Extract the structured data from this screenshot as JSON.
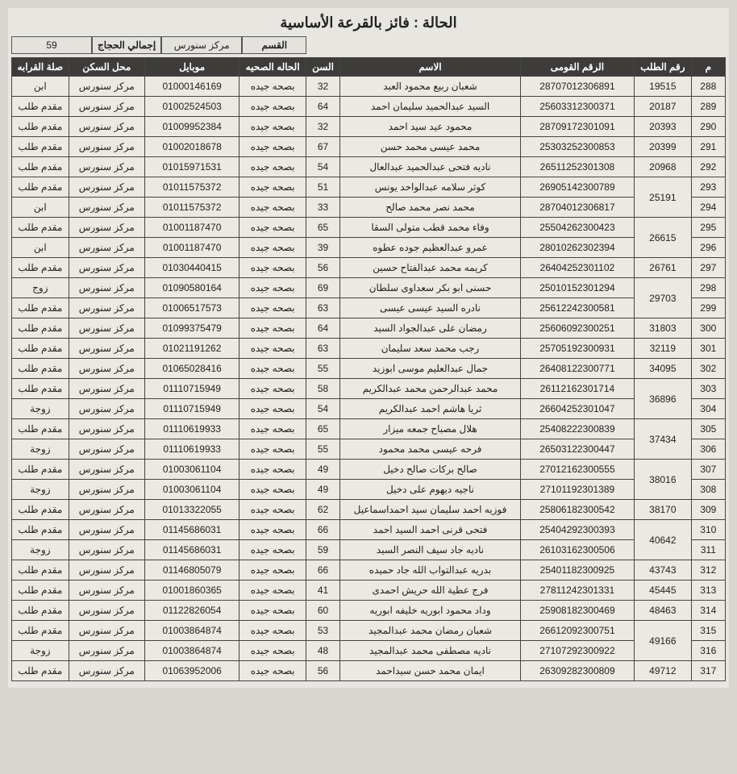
{
  "title": "الحالة : فائز بالقرعة الأساسية",
  "summary": {
    "section_label": "القسم",
    "section_value": "مركز سنورس",
    "total_label": "إجمالي الحجاج",
    "total_value": "59"
  },
  "columns": {
    "m": "م",
    "req": "رقم الطلب",
    "nid": "الرقم القومى",
    "name": "الاسم",
    "age": "السن",
    "health": "الحاله الصحيه",
    "mobile": "موبايل",
    "loc": "محل السكن",
    "rel": "صلة القرابه"
  },
  "defaults": {
    "health": "بصحه جيده",
    "loc": "مركز سنورس"
  },
  "rows": [
    {
      "m": "288",
      "req": "19515",
      "nid": "28707012306891",
      "name": "شعبان ربيع محمود العبد",
      "age": "32",
      "mobile": "01000146169",
      "rel": "ابن"
    },
    {
      "m": "289",
      "req": "20187",
      "nid": "25603312300371",
      "name": "السيد عبدالحميد سليمان احمد",
      "age": "64",
      "mobile": "01002524503",
      "rel": "مقدم طلب"
    },
    {
      "m": "290",
      "req": "20393",
      "nid": "28709172301091",
      "name": "محمود عيد سيد احمد",
      "age": "32",
      "mobile": "01009952384",
      "rel": "مقدم طلب"
    },
    {
      "m": "291",
      "req": "20399",
      "nid": "25303252300853",
      "name": "محمد عيسى محمد حسن",
      "age": "67",
      "mobile": "01002018678",
      "rel": "مقدم طلب"
    },
    {
      "m": "292",
      "req": "20968",
      "nid": "26511252301308",
      "name": "ناديه فتحى عبدالحميد عبدالعال",
      "age": "54",
      "mobile": "01015971531",
      "rel": "مقدم طلب"
    },
    {
      "m": "293",
      "req": "25191",
      "req_rowspan": 2,
      "nid": "26905142300789",
      "name": "كوثر سلامه عبدالواحد يونس",
      "age": "51",
      "mobile": "01011575372",
      "rel": "مقدم طلب"
    },
    {
      "m": "294",
      "nid": "28704012306817",
      "name": "محمد نصر محمد صالح",
      "age": "33",
      "mobile": "01011575372",
      "rel": "ابن"
    },
    {
      "m": "295",
      "req": "26615",
      "req_rowspan": 2,
      "nid": "25504262300423",
      "name": "وفاء محمد قطب متولى السقا",
      "age": "65",
      "mobile": "01001187470",
      "rel": "مقدم طلب"
    },
    {
      "m": "296",
      "nid": "28010262302394",
      "name": "عمرو عبدالعظيم جوده عطوه",
      "age": "39",
      "mobile": "01001187470",
      "rel": "ابن"
    },
    {
      "m": "297",
      "req": "26761",
      "nid": "26404252301102",
      "name": "كريمه محمد عبدالفتاح حسين",
      "age": "56",
      "mobile": "01030440415",
      "rel": "مقدم طلب"
    },
    {
      "m": "298",
      "req": "29703",
      "req_rowspan": 2,
      "nid": "25010152301294",
      "name": "حسنى ابو بكر سعداوى سلطان",
      "age": "69",
      "mobile": "01090580164",
      "rel": "زوج"
    },
    {
      "m": "299",
      "nid": "25612242300581",
      "name": "نادره السيد عيسى عيسى",
      "age": "63",
      "mobile": "01006517573",
      "rel": "مقدم طلب"
    },
    {
      "m": "300",
      "req": "31803",
      "nid": "25606092300251",
      "name": "رمضان على عبدالجواد السيد",
      "age": "64",
      "mobile": "01099375479",
      "rel": "مقدم طلب"
    },
    {
      "m": "301",
      "req": "32119",
      "nid": "25705192300931",
      "name": "رجب محمد سعد سليمان",
      "age": "63",
      "mobile": "01021191262",
      "rel": "مقدم طلب"
    },
    {
      "m": "302",
      "req": "34095",
      "nid": "26408122300771",
      "name": "جمال عبدالعليم موسى ابوزيد",
      "age": "55",
      "mobile": "01065028416",
      "rel": "مقدم طلب"
    },
    {
      "m": "303",
      "req": "36896",
      "req_rowspan": 2,
      "nid": "26112162301714",
      "name": "محمد عبدالرحمن محمد عبدالكريم",
      "age": "58",
      "mobile": "01110715949",
      "rel": "مقدم طلب"
    },
    {
      "m": "304",
      "nid": "26604252301047",
      "name": "ثريا هاشم احمد عبدالكريم",
      "age": "54",
      "mobile": "01110715949",
      "rel": "زوجة"
    },
    {
      "m": "305",
      "req": "37434",
      "req_rowspan": 2,
      "nid": "25408222300839",
      "name": "هلال مصباح جمعه ميزار",
      "age": "65",
      "mobile": "01110619933",
      "rel": "مقدم طلب"
    },
    {
      "m": "306",
      "nid": "26503122300447",
      "name": "فرحه عيسى محمد محمود",
      "age": "55",
      "mobile": "01110619933",
      "rel": "زوجة"
    },
    {
      "m": "307",
      "req": "38016",
      "req_rowspan": 2,
      "nid": "27012162300555",
      "name": "صالح بركات صالح دخيل",
      "age": "49",
      "mobile": "01003061104",
      "rel": "مقدم طلب"
    },
    {
      "m": "308",
      "nid": "27101192301389",
      "name": "ناجيه ديهوم على دخيل",
      "age": "49",
      "mobile": "01003061104",
      "rel": "زوجة"
    },
    {
      "m": "309",
      "req": "38170",
      "nid": "25806182300542",
      "name": "فوزيه احمد سليمان سيد احمداسماعيل",
      "age": "62",
      "mobile": "01013322055",
      "rel": "مقدم طلب"
    },
    {
      "m": "310",
      "req": "40642",
      "req_rowspan": 2,
      "nid": "25404292300393",
      "name": "فتحى قرنى احمد السيد احمد",
      "age": "66",
      "mobile": "01145686031",
      "rel": "مقدم طلب"
    },
    {
      "m": "311",
      "nid": "26103162300506",
      "name": "ناديه جاد سيف النصر السيد",
      "age": "59",
      "mobile": "01145686031",
      "rel": "زوجة"
    },
    {
      "m": "312",
      "req": "43743",
      "nid": "25401182300925",
      "name": "بدريه عبدالتواب الله جاد حميده",
      "age": "66",
      "mobile": "01146805079",
      "rel": "مقدم طلب"
    },
    {
      "m": "313",
      "req": "45445",
      "nid": "27811242301331",
      "name": "فرج عطية الله حريش احمدى",
      "age": "41",
      "mobile": "01001860365",
      "rel": "مقدم طلب"
    },
    {
      "m": "314",
      "req": "48463",
      "nid": "25908182300469",
      "name": "وداد محمود ابوريه خليفه ابوريه",
      "age": "60",
      "mobile": "01122826054",
      "rel": "مقدم طلب"
    },
    {
      "m": "315",
      "req": "49166",
      "req_rowspan": 2,
      "nid": "26612092300751",
      "name": "شعبان رمضان محمد عبدالمجيد",
      "age": "53",
      "mobile": "01003864874",
      "rel": "مقدم طلب"
    },
    {
      "m": "316",
      "nid": "27107292300922",
      "name": "ناديه مصطفى محمد عبدالمجيد",
      "age": "48",
      "mobile": "01003864874",
      "rel": "زوجة"
    },
    {
      "m": "317",
      "req": "49712",
      "nid": "26309282300809",
      "name": "ايمان محمد حسن سيداحمد",
      "age": "56",
      "mobile": "01063952006",
      "rel": "مقدم طلب"
    }
  ]
}
